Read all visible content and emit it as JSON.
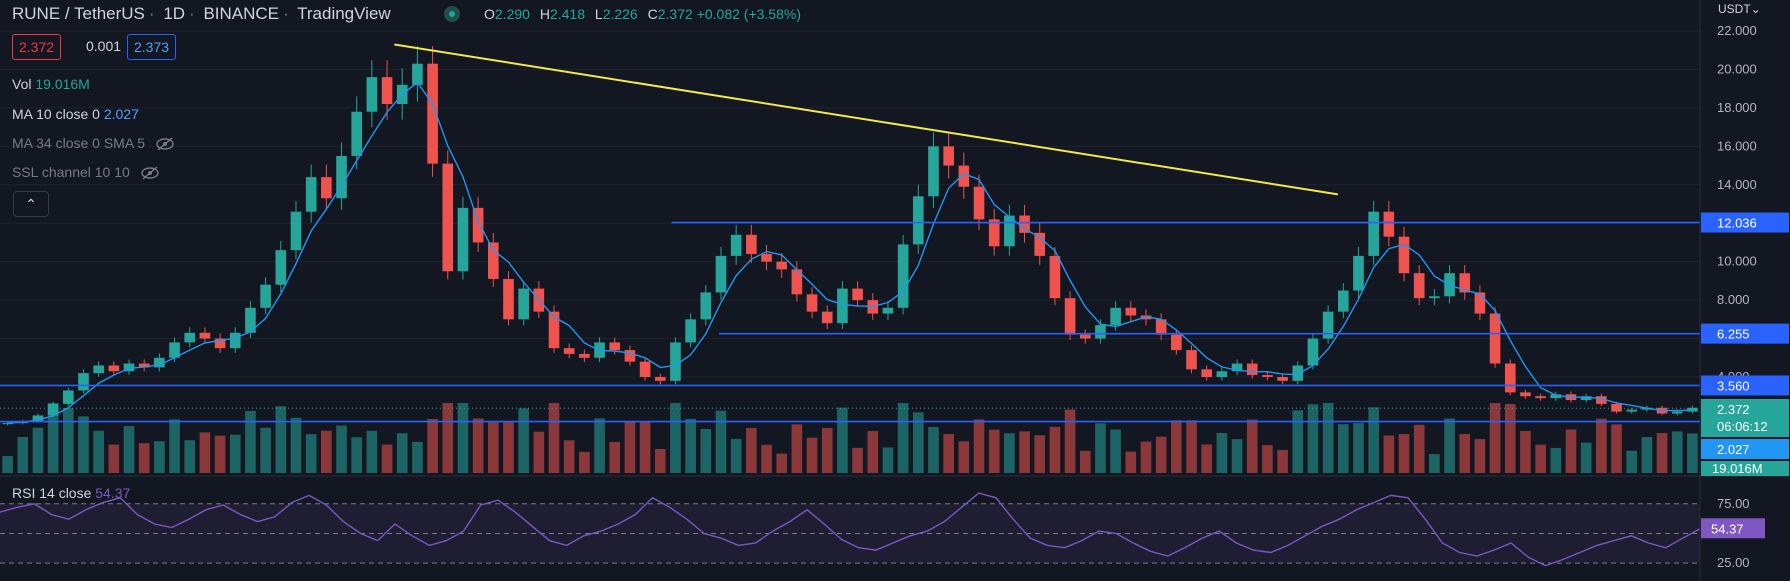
{
  "header": {
    "symbol": "RUNE / TetherUS",
    "interval": "1D",
    "exchange": "BINANCE",
    "provider": "TradingView",
    "open_label": "O",
    "open": "2.290",
    "high_label": "H",
    "high": "2.418",
    "low_label": "L",
    "low": "2.226",
    "close_label": "C",
    "close": "2.372",
    "change": "+0.082 (+3.58%)"
  },
  "price_boxes": {
    "bid": "2.372",
    "spread": "0.001",
    "ask": "2.373"
  },
  "indicators": {
    "vol_label": "Vol",
    "vol_value": "19.016M",
    "ma_label": "MA 10 close 0",
    "ma_value": "2.027",
    "ma34_label": "MA 34 close 0 SMA 5",
    "ssl_label": "SSL channel 10 10",
    "rsi_label": "RSI 14 close",
    "rsi_value": "54.37"
  },
  "collapse_icon": "chevron-up-icon",
  "currency_selector": "USDT",
  "colors": {
    "background": "#131722",
    "up": "#26a69a",
    "down": "#ef5350",
    "ma": "#2196f3",
    "trendline": "#f5e94a",
    "levels": "#2962ff",
    "rsi": "#7e57c2",
    "axis_text": "#b2b5be"
  },
  "chart_data": [
    {
      "type": "candlestick",
      "y_axis_ticks": [
        "22.000",
        "20.000",
        "18.000",
        "16.000",
        "14.000",
        "12.000",
        "10.000",
        "8.000",
        "6.000",
        "4.000"
      ],
      "price_labels": {
        "level_high": "12.036",
        "level_mid": "6.255",
        "level_low": "3.560",
        "last_price": "2.372",
        "countdown": "06:06:12",
        "ma_value": "2.027",
        "volume": "19.016M"
      },
      "horizontal_levels": [
        {
          "price": 12.036,
          "from_fraction": 0.395
        },
        {
          "price": 6.255,
          "from_fraction": 0.423
        },
        {
          "price": 3.56,
          "from_fraction": 0.0
        },
        {
          "price": 1.68,
          "from_fraction": 0.0
        }
      ],
      "trendline": {
        "from": {
          "bar_fraction": 0.232,
          "price": 21.3
        },
        "to": {
          "bar_fraction": 0.787,
          "price": 13.5
        }
      },
      "close_series": [
        1.6,
        1.7,
        2.0,
        2.6,
        3.3,
        4.2,
        4.6,
        4.3,
        4.7,
        4.5,
        5.0,
        5.8,
        6.3,
        6.0,
        5.5,
        6.3,
        7.6,
        8.8,
        10.6,
        12.6,
        14.4,
        13.3,
        15.5,
        17.8,
        19.6,
        18.2,
        19.2,
        20.3,
        15.1,
        9.5,
        12.8,
        11.0,
        9.1,
        7.0,
        8.6,
        7.4,
        5.5,
        5.2,
        5.0,
        5.8,
        5.4,
        4.8,
        4.0,
        3.8,
        5.8,
        7.0,
        8.4,
        10.3,
        11.4,
        10.4,
        10.0,
        9.6,
        8.3,
        7.4,
        6.8,
        8.6,
        8.0,
        7.3,
        7.6,
        10.9,
        13.4,
        16.0,
        15.0,
        13.9,
        12.2,
        10.8,
        12.4,
        11.5,
        10.3,
        8.1,
        6.2,
        6.0,
        6.7,
        7.6,
        7.2,
        7.0,
        6.2,
        5.4,
        4.4,
        4.0,
        4.3,
        4.7,
        4.1,
        4.0,
        3.8,
        4.6,
        6.0,
        7.4,
        8.5,
        10.3,
        12.6,
        11.3,
        9.4,
        8.1,
        8.2,
        9.4,
        8.4,
        7.3,
        4.7,
        3.2,
        3.0,
        2.9,
        3.1,
        2.8,
        3.0,
        2.6,
        2.2,
        2.3,
        2.4,
        2.1,
        2.2,
        2.4
      ],
      "rsi_series": [
        68,
        72,
        75,
        66,
        62,
        70,
        76,
        80,
        66,
        58,
        55,
        62,
        70,
        74,
        66,
        60,
        64,
        76,
        82,
        74,
        60,
        50,
        44,
        58,
        48,
        40,
        44,
        52,
        74,
        78,
        68,
        56,
        44,
        40,
        48,
        52,
        58,
        66,
        80,
        72,
        62,
        50,
        46,
        40,
        42,
        52,
        60,
        70,
        58,
        45,
        38,
        36,
        42,
        48,
        52,
        60,
        72,
        84,
        80,
        62,
        46,
        40,
        38,
        44,
        52,
        50,
        42,
        35,
        31,
        38,
        46,
        52,
        42,
        36,
        34,
        40,
        48,
        56,
        62,
        70,
        76,
        82,
        80,
        62,
        42,
        34,
        31,
        36,
        42,
        30,
        23,
        28,
        34,
        40,
        44,
        48,
        42,
        38,
        46,
        54
      ],
      "rsi_levels": [
        "75.00",
        "25.00"
      ],
      "rsi_value": "54.37",
      "visible_tick_labels": {
        "rsi_upper": "75.00",
        "rsi_lower": "25.00"
      }
    }
  ]
}
